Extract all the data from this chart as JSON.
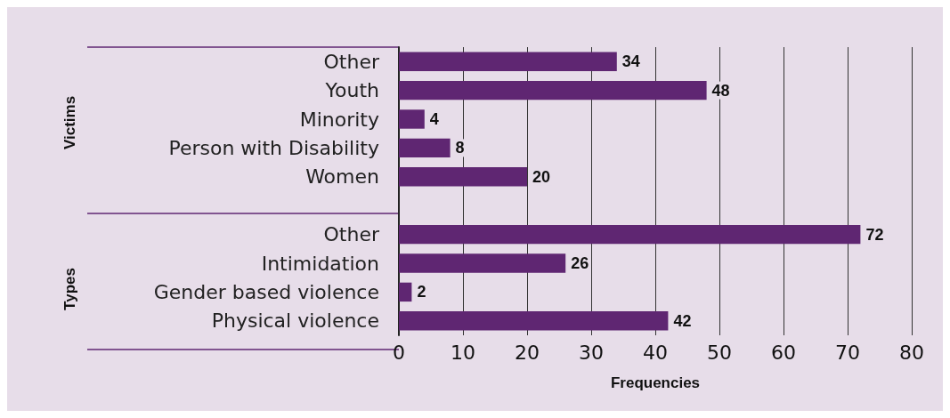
{
  "chart_data": {
    "type": "bar",
    "orientation": "horizontal",
    "xlabel": "Frequencies",
    "categories": [
      "Other",
      "Youth",
      "Minority",
      "Person with Disability",
      "Women",
      null,
      "Other",
      "Intimidation",
      "Gender based violence",
      "Physical violence"
    ],
    "values": [
      34,
      48,
      4,
      8,
      20,
      null,
      72,
      26,
      2,
      42
    ],
    "color": "#5f2672",
    "data_labels": true,
    "grid": "x",
    "xlim": [
      0,
      80
    ],
    "xticks": [
      0,
      10,
      20,
      30,
      40,
      50,
      60,
      70,
      80
    ],
    "annotations": [
      "Victims",
      "Types"
    ]
  }
}
